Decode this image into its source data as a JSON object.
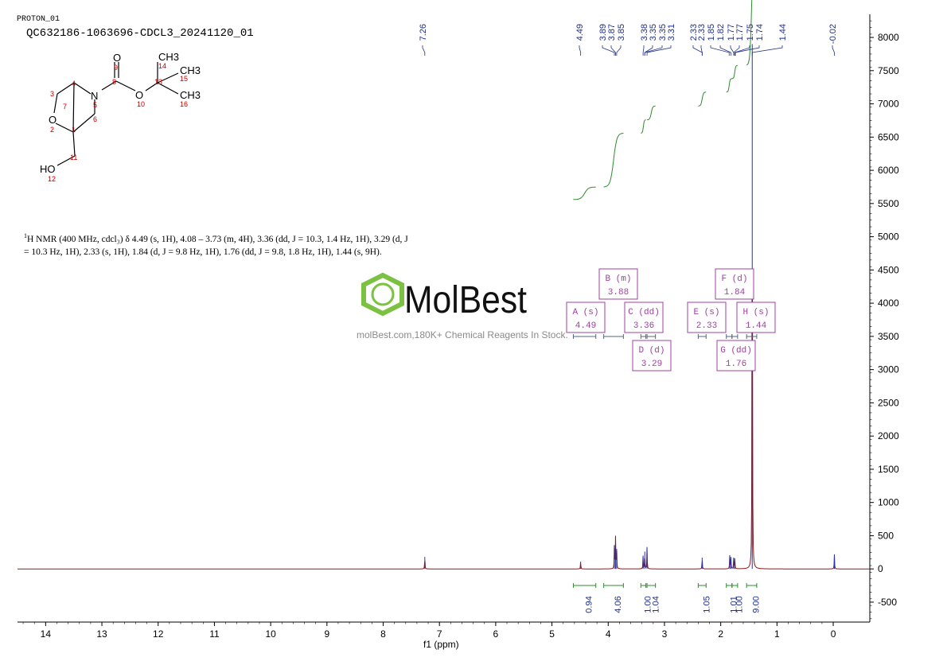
{
  "header": {
    "experiment": "PROTON_01",
    "sample": "QC632186-1063696-CDCL3_20241120_01"
  },
  "nmr_text": {
    "sup": "1",
    "line1": "H NMR (400 MHz, cdcl₃) δ 4.49 (s, 1H), 4.08 – 3.73 (m, 4H), 3.36 (dd, J = 10.3, 1.4 Hz, 1H), 3.29 (d, J",
    "line2": "= 10.3 Hz, 1H), 2.33 (s, 1H), 1.84 (d, J = 9.8 Hz, 1H), 1.76 (dd, J = 9.8, 1.8 Hz, 1H), 1.44 (s, 9H)."
  },
  "watermark": {
    "brand": "MolBest",
    "url": "molBest.com,180K+ Chemical Reagents In Stock.",
    "color": "#7cc242"
  },
  "structure": {
    "labels": [
      "O",
      "9",
      "8",
      "N",
      "5",
      "4",
      "3",
      "7",
      "O",
      "2",
      "1",
      "6",
      "11",
      "HO",
      "12",
      "O",
      "10",
      "13",
      "14",
      "CH3",
      "15",
      "CH3",
      "CH3",
      "16"
    ]
  },
  "peak_labels": [
    "7.26",
    "4.49",
    "3.89",
    "3.87",
    "3.85",
    "3.38",
    "3.35",
    "3.35",
    "3.31",
    "2.33",
    "2.33",
    "1.85",
    "1.82",
    "1.77",
    "1.77",
    "1.75",
    "1.74",
    "1.44",
    "-0.02"
  ],
  "multiplets": [
    {
      "name": "A (s)",
      "shift": "4.49"
    },
    {
      "name": "B (m)",
      "shift": "3.88"
    },
    {
      "name": "C (dd)",
      "shift": "3.36"
    },
    {
      "name": "D (d)",
      "shift": "3.29"
    },
    {
      "name": "E (s)",
      "shift": "2.33"
    },
    {
      "name": "F (d)",
      "shift": "1.84"
    },
    {
      "name": "G (dd)",
      "shift": "1.76"
    },
    {
      "name": "H (s)",
      "shift": "1.44"
    }
  ],
  "colors": {
    "spectrum": "#8b1a1a",
    "integral": "#2e8b2e",
    "peak_label": "#1f2f8a",
    "multiplet": "#a040a0",
    "axis": "#000000"
  },
  "chart_data": {
    "type": "line",
    "xlabel": "f1 (ppm)",
    "xlim": [
      14.5,
      -0.65
    ],
    "ylim": [
      -800,
      8300
    ],
    "x_ticks": [
      14,
      13,
      12,
      11,
      10,
      9,
      8,
      7,
      6,
      5,
      4,
      3,
      2,
      1,
      0
    ],
    "y_ticks": [
      -500,
      0,
      500,
      1000,
      1500,
      2000,
      2500,
      3000,
      3500,
      4000,
      4500,
      5000,
      5500,
      6000,
      6500,
      7000,
      7500,
      8000
    ],
    "peaks": [
      {
        "ppm": 7.26,
        "height": 180
      },
      {
        "ppm": 4.49,
        "height": 110
      },
      {
        "ppm": 3.89,
        "height": 350
      },
      {
        "ppm": 3.87,
        "height": 480
      },
      {
        "ppm": 3.85,
        "height": 300
      },
      {
        "ppm": 3.38,
        "height": 200
      },
      {
        "ppm": 3.35,
        "height": 260
      },
      {
        "ppm": 3.31,
        "height": 330
      },
      {
        "ppm": 2.33,
        "height": 170
      },
      {
        "ppm": 1.84,
        "height": 200
      },
      {
        "ppm": 1.82,
        "height": 180
      },
      {
        "ppm": 1.77,
        "height": 170
      },
      {
        "ppm": 1.75,
        "height": 160
      },
      {
        "ppm": 1.44,
        "height": 7900
      },
      {
        "ppm": -0.02,
        "height": 220
      }
    ],
    "integrals": [
      {
        "from": 4.62,
        "to": 4.22,
        "value": "0.94"
      },
      {
        "from": 4.08,
        "to": 3.73,
        "value": "4.06"
      },
      {
        "from": 3.42,
        "to": 3.33,
        "value": "1.00"
      },
      {
        "from": 3.31,
        "to": 3.16,
        "value": "1.04"
      },
      {
        "from": 2.4,
        "to": 2.26,
        "value": "1.05"
      },
      {
        "from": 1.9,
        "to": 1.8,
        "value": "1.01"
      },
      {
        "from": 1.8,
        "to": 1.7,
        "value": "1.00"
      },
      {
        "from": 1.54,
        "to": 1.36,
        "value": "9.00"
      }
    ]
  }
}
